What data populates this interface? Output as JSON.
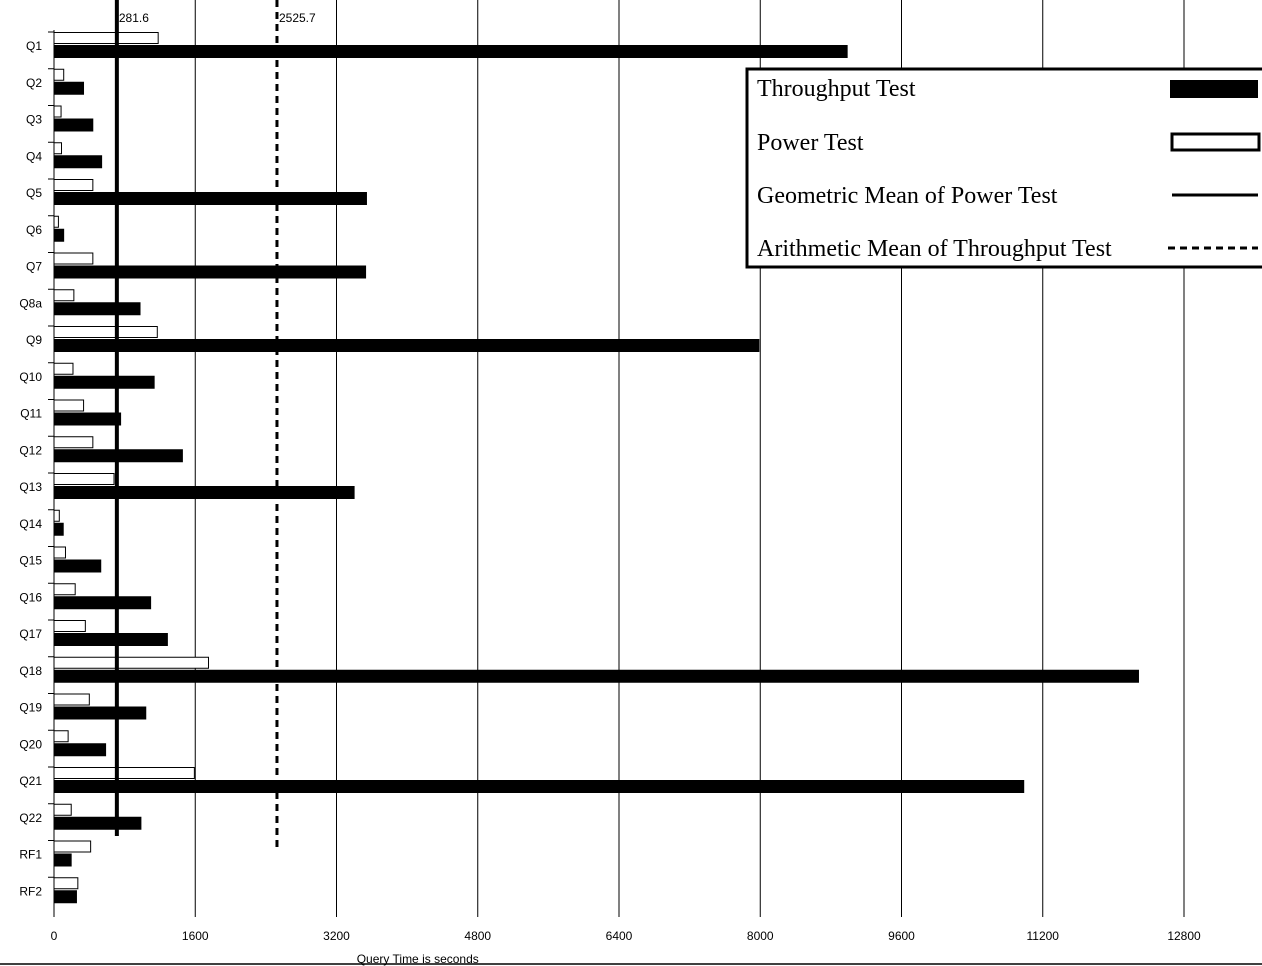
{
  "chart_data": {
    "type": "bar",
    "orientation": "horizontal",
    "categories": [
      "Q1",
      "Q2",
      "Q3",
      "Q4",
      "Q5",
      "Q6",
      "Q7",
      "Q8a",
      "Q9",
      "Q10",
      "Q11",
      "Q12",
      "Q13",
      "Q14",
      "Q15",
      "Q16",
      "Q17",
      "Q18",
      "Q19",
      "Q20",
      "Q21",
      "Q22",
      "RF1",
      "RF2"
    ],
    "series": [
      {
        "name": "Power Test",
        "style": "outline",
        "color": "#000000",
        "values": [
          1180,
          110,
          80,
          85,
          440,
          50,
          440,
          225,
          1170,
          215,
          335,
          440,
          680,
          60,
          130,
          240,
          355,
          1750,
          400,
          160,
          1590,
          195,
          415,
          270
        ]
      },
      {
        "name": "Throughput Test",
        "style": "filled",
        "color": "#000000",
        "values": [
          8990,
          340,
          445,
          545,
          3545,
          115,
          3535,
          980,
          7990,
          1140,
          760,
          1460,
          3405,
          110,
          535,
          1100,
          1290,
          12290,
          1045,
          590,
          10990,
          990,
          200,
          260
        ]
      }
    ],
    "reference_lines": [
      {
        "name": "Geometric Mean of Power Test",
        "value": 281.6,
        "label": "281.6",
        "style": "solid"
      },
      {
        "name": "Arithmetic Mean of Throughput Test",
        "value": 2525.7,
        "label": "2525.7",
        "style": "dashed"
      }
    ],
    "xlabel": "Query Time is seconds",
    "xlim": [
      0,
      12800
    ],
    "xticks": [
      0,
      1600,
      3200,
      4800,
      6400,
      8000,
      9600,
      11200,
      12800
    ],
    "grid": true,
    "legend_position": "top-right",
    "legend": [
      {
        "label": "Throughput Test",
        "symbol": "filled-bar"
      },
      {
        "label": "Power Test",
        "symbol": "outline-bar"
      },
      {
        "label": "Geometric Mean of Power Test",
        "symbol": "solid-line"
      },
      {
        "label": "Arithmetic Mean of Throughput Test",
        "symbol": "dashed-line"
      }
    ]
  }
}
